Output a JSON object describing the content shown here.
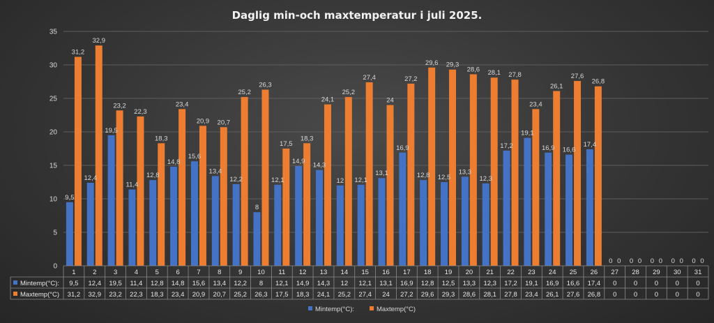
{
  "chart_data": {
    "type": "bar",
    "title": "Daglig min-och maxtemperatur i juli 2025.",
    "categories": [
      "1",
      "2",
      "3",
      "4",
      "5",
      "6",
      "7",
      "8",
      "9",
      "10",
      "11",
      "12",
      "13",
      "14",
      "15",
      "16",
      "17",
      "18",
      "19",
      "20",
      "21",
      "22",
      "23",
      "24",
      "25",
      "26",
      "27",
      "28",
      "29",
      "30",
      "31"
    ],
    "series": [
      {
        "name": "Mintemp(°C):",
        "color": "#4472c4",
        "values": [
          9.5,
          12.4,
          19.5,
          11.4,
          12.8,
          14.8,
          15.6,
          13.4,
          12.2,
          8,
          12.1,
          14.9,
          14.3,
          12,
          12.1,
          13.1,
          16.9,
          12.8,
          12.5,
          13.3,
          12.3,
          17.2,
          19.1,
          16.9,
          16.6,
          17.4,
          0,
          0,
          0,
          0,
          0
        ]
      },
      {
        "name": "Maxtemp(°C)",
        "color": "#ed7d31",
        "values": [
          31.2,
          32.9,
          23.2,
          22.3,
          18.3,
          23.4,
          20.9,
          20.7,
          25.2,
          26.3,
          17.5,
          18.3,
          24.1,
          25.2,
          27.4,
          24,
          27.2,
          29.6,
          29.3,
          28.6,
          28.1,
          27.8,
          23.4,
          26.1,
          27.6,
          26.8,
          0,
          0,
          0,
          0,
          0
        ]
      }
    ],
    "ylim": [
      0,
      35
    ],
    "yticks": [
      "0",
      "5",
      "10",
      "15",
      "20",
      "25",
      "30",
      "35"
    ],
    "grid": true,
    "data_table": true,
    "legend": "bottom"
  }
}
